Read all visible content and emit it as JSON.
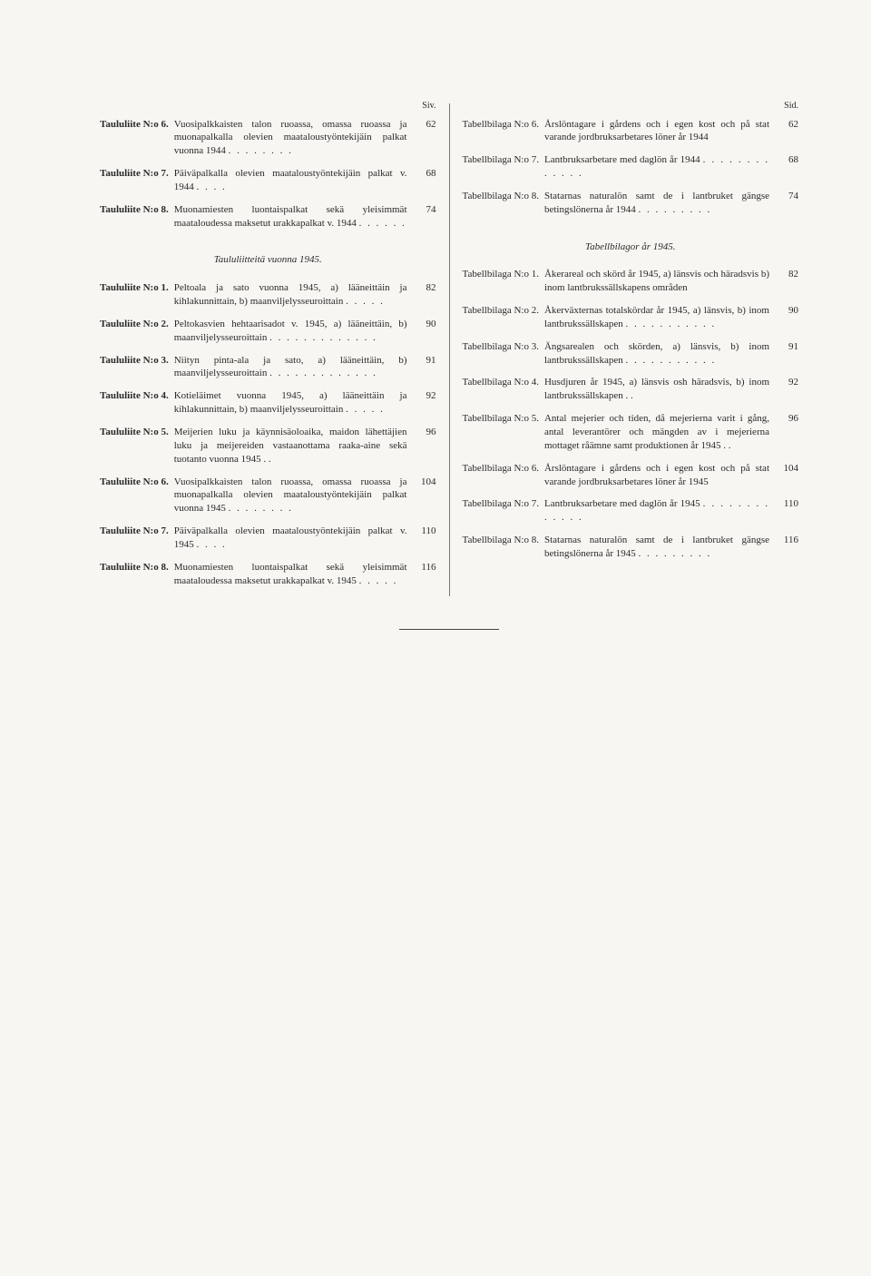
{
  "left": {
    "header": "Siv.",
    "block1": [
      {
        "label": "Taululiite N:o 6.",
        "desc": "Vuosipalkkaisten talon ruoassa, omassa ruoassa ja muonapalkalla olevien maataloustyöntekijäin palkat vuonna 1944",
        "page": "62"
      },
      {
        "label": "Taululiite N:o 7.",
        "desc": "Päiväpalkalla olevien maataloustyöntekijäin palkat v. 1944",
        "page": "68"
      },
      {
        "label": "Taululiite N:o 8.",
        "desc": "Muonamiesten luontaispalkat sekä yleisimmät maataloudessa maksetut urakkapalkat v. 1944",
        "page": "74"
      }
    ],
    "section_title": "Taululiitteitä vuonna 1945.",
    "block2": [
      {
        "label": "Taululiite N:o 1.",
        "desc": "Peltoala ja sato vuonna 1945, a) lääneittäin ja kihlakunnittain, b) maanviljelysseuroittain",
        "page": "82"
      },
      {
        "label": "Taululiite N:o 2.",
        "desc": "Peltokasvien hehtaarisadot v. 1945, a) lääneittäin, b) maanviljelysseuroittain",
        "page": "90"
      },
      {
        "label": "Taululiite N:o 3.",
        "desc": "Niityn pinta-ala ja sato, a) lääneittäin, b) maanviljelysseuroittain",
        "page": "91"
      },
      {
        "label": "Taululiite N:o 4.",
        "desc": "Kotieläimet vuonna 1945, a) lääneittäin ja kihlakunnittain, b) maanviljelysseuroittain",
        "page": "92"
      },
      {
        "label": "Taululiite N:o 5.",
        "desc": "Meijerien luku ja käynnisäoloaika, maidon lähettäjien luku ja meijereiden vastaanottama raaka-aine sekä tuotanto vuonna 1945 . .",
        "page": "96"
      },
      {
        "label": "Taululiite N:o 6.",
        "desc": "Vuosipalkkaisten talon ruoassa, omassa ruoassa ja muonapalkalla olevien maataloustyöntekijäin palkat vuonna 1945",
        "page": "104"
      },
      {
        "label": "Taululiite N:o 7.",
        "desc": "Päiväpalkalla olevien maataloustyöntekijäin palkat v. 1945",
        "page": "110"
      },
      {
        "label": "Taululiite N:o 8.",
        "desc": "Muonamiesten luontaispalkat sekä yleisimmät maataloudessa maksetut urakkapalkat v. 1945",
        "page": "116"
      }
    ]
  },
  "right": {
    "header": "Sid.",
    "block1": [
      {
        "label": "Tabellbilaga N:o 6.",
        "desc": "Årslöntagare i gårdens och i egen kost och på stat varande jordbruksarbetares löner år 1944",
        "page": "62"
      },
      {
        "label": "Tabellbilaga N:o 7.",
        "desc": "Lantbruksarbetare med daglön år 1944",
        "page": "68"
      },
      {
        "label": "Tabellbilaga N:o 8.",
        "desc": "Statarnas naturalön samt de i lantbruket gängse betingslönerna år 1944",
        "page": "74"
      }
    ],
    "section_title": "Tabellbilagor år 1945.",
    "block2": [
      {
        "label": "Tabellbilaga N:o 1.",
        "desc": "Åkerareal och skörd år 1945, a) länsvis och häradsvis b) inom lantbrukssällskapens områden",
        "page": "82"
      },
      {
        "label": "Tabellbilaga N:o 2.",
        "desc": "Åkerväxternas totalskördar år 1945, a) länsvis, b) inom lantbrukssällskapen",
        "page": "90"
      },
      {
        "label": "Tabellbilaga N:o 3.",
        "desc": "Ängsarealen och skörden, a) länsvis, b) inom lantbrukssällskapen",
        "page": "91"
      },
      {
        "label": "Tabellbilaga N:o 4.",
        "desc": "Husdjuren år 1945, a) länsvis osh häradsvis, b) inom lantbrukssällskapen  . .",
        "page": "92"
      },
      {
        "label": "Tabellbilaga N:o 5.",
        "desc": "Antal mejerier och tiden, då mejerierna varit i gång, antal leverantörer och mängden av i mejerierna mottaget råämne samt produktionen år 1945  . .",
        "page": "96"
      },
      {
        "label": "Tabellbilaga N:o 6.",
        "desc": "Årslöntagare i gårdens och i egen kost och på stat varande jordbruksarbetares löner år 1945",
        "page": "104"
      },
      {
        "label": "Tabellbilaga N:o 7.",
        "desc": "Lantbruksarbetare med daglön år 1945",
        "page": "110"
      },
      {
        "label": "Tabellbilaga N:o 8.",
        "desc": "Statarnas naturalön samt de i lantbruket gängse betingslönerna år 1945",
        "page": "116"
      }
    ]
  }
}
